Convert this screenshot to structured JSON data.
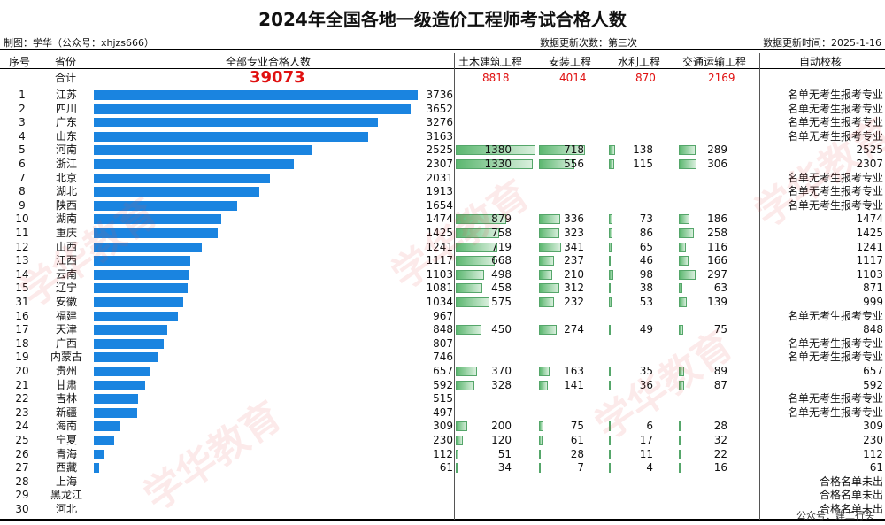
{
  "header": {
    "title": "2024年全国各地一级造价工程师考试合格人数",
    "maker": "制图：学华（公众号：xhjzs666）",
    "update_count": "数据更新次数：第三次",
    "update_time": "数据更新时间：2025-1-16"
  },
  "columns": {
    "no": "序号",
    "province": "省份",
    "all": "全部专业合格人数",
    "civil": "土木建筑工程",
    "install": "安装工程",
    "water": "水利工程",
    "traffic": "交通运输工程",
    "check": "自动校核"
  },
  "totals": {
    "label": "合计",
    "all": "39073",
    "civil": "8818",
    "install": "4014",
    "water": "870",
    "traffic": "2169"
  },
  "watermark": "学华教育",
  "footer_note": "公众号：建工行头",
  "colors": {
    "bar": "#1a84e0",
    "green": "#5cb770",
    "total": "#e01010"
  },
  "chart_data": {
    "type": "bar",
    "title": "2024年全国各地一级造价工程师考试合格人数",
    "series": [
      {
        "name": "全部专业合格人数"
      },
      {
        "name": "土木建筑工程"
      },
      {
        "name": "安装工程"
      },
      {
        "name": "水利工程"
      },
      {
        "name": "交通运输工程"
      }
    ],
    "rows": [
      {
        "no": "1",
        "province": "江苏",
        "all": 3736,
        "civil": null,
        "install": null,
        "water": null,
        "traffic": null,
        "check": "名单无考生报考专业"
      },
      {
        "no": "2",
        "province": "四川",
        "all": 3652,
        "civil": null,
        "install": null,
        "water": null,
        "traffic": null,
        "check": "名单无考生报考专业"
      },
      {
        "no": "3",
        "province": "广东",
        "all": 3276,
        "civil": null,
        "install": null,
        "water": null,
        "traffic": null,
        "check": "名单无考生报考专业"
      },
      {
        "no": "4",
        "province": "山东",
        "all": 3163,
        "civil": null,
        "install": null,
        "water": null,
        "traffic": null,
        "check": "名单无考生报考专业"
      },
      {
        "no": "5",
        "province": "河南",
        "all": 2525,
        "civil": 1380,
        "install": 718,
        "water": 138,
        "traffic": 289,
        "check": "2525"
      },
      {
        "no": "6",
        "province": "浙江",
        "all": 2307,
        "civil": 1330,
        "install": 556,
        "water": 115,
        "traffic": 306,
        "check": "2307"
      },
      {
        "no": "7",
        "province": "北京",
        "all": 2031,
        "civil": null,
        "install": null,
        "water": null,
        "traffic": null,
        "check": "名单无考生报考专业"
      },
      {
        "no": "8",
        "province": "湖北",
        "all": 1913,
        "civil": null,
        "install": null,
        "water": null,
        "traffic": null,
        "check": "名单无考生报考专业"
      },
      {
        "no": "9",
        "province": "陕西",
        "all": 1654,
        "civil": null,
        "install": null,
        "water": null,
        "traffic": null,
        "check": "名单无考生报考专业"
      },
      {
        "no": "10",
        "province": "湖南",
        "all": 1474,
        "civil": 879,
        "install": 336,
        "water": 73,
        "traffic": 186,
        "check": "1474"
      },
      {
        "no": "11",
        "province": "重庆",
        "all": 1425,
        "civil": 758,
        "install": 323,
        "water": 86,
        "traffic": 258,
        "check": "1425"
      },
      {
        "no": "12",
        "province": "山西",
        "all": 1241,
        "civil": 719,
        "install": 341,
        "water": 65,
        "traffic": 116,
        "check": "1241"
      },
      {
        "no": "13",
        "province": "江西",
        "all": 1117,
        "civil": 668,
        "install": 237,
        "water": 46,
        "traffic": 166,
        "check": "1117"
      },
      {
        "no": "14",
        "province": "云南",
        "all": 1103,
        "civil": 498,
        "install": 210,
        "water": 98,
        "traffic": 297,
        "check": "1103"
      },
      {
        "no": "15",
        "province": "辽宁",
        "all": 1081,
        "civil": 458,
        "install": 312,
        "water": 38,
        "traffic": 63,
        "check": "871"
      },
      {
        "no": "31",
        "province": "安徽",
        "all": 1034,
        "civil": 575,
        "install": 232,
        "water": 53,
        "traffic": 139,
        "check": "999"
      },
      {
        "no": "16",
        "province": "福建",
        "all": 967,
        "civil": null,
        "install": null,
        "water": null,
        "traffic": null,
        "check": "名单无考生报考专业"
      },
      {
        "no": "17",
        "province": "天津",
        "all": 848,
        "civil": 450,
        "install": 274,
        "water": 49,
        "traffic": 75,
        "check": "848"
      },
      {
        "no": "18",
        "province": "广西",
        "all": 807,
        "civil": null,
        "install": null,
        "water": null,
        "traffic": null,
        "check": "名单无考生报考专业"
      },
      {
        "no": "19",
        "province": "内蒙古",
        "all": 746,
        "civil": null,
        "install": null,
        "water": null,
        "traffic": null,
        "check": "名单无考生报考专业"
      },
      {
        "no": "20",
        "province": "贵州",
        "all": 657,
        "civil": 370,
        "install": 163,
        "water": 35,
        "traffic": 89,
        "check": "657"
      },
      {
        "no": "21",
        "province": "甘肃",
        "all": 592,
        "civil": 328,
        "install": 141,
        "water": 36,
        "traffic": 87,
        "check": "592"
      },
      {
        "no": "22",
        "province": "吉林",
        "all": 515,
        "civil": null,
        "install": null,
        "water": null,
        "traffic": null,
        "check": "名单无考生报考专业"
      },
      {
        "no": "23",
        "province": "新疆",
        "all": 497,
        "civil": null,
        "install": null,
        "water": null,
        "traffic": null,
        "check": "名单无考生报考专业"
      },
      {
        "no": "24",
        "province": "海南",
        "all": 309,
        "civil": 200,
        "install": 75,
        "water": 6,
        "traffic": 28,
        "check": "309"
      },
      {
        "no": "25",
        "province": "宁夏",
        "all": 230,
        "civil": 120,
        "install": 61,
        "water": 17,
        "traffic": 32,
        "check": "230"
      },
      {
        "no": "26",
        "province": "青海",
        "all": 112,
        "civil": 51,
        "install": 28,
        "water": 11,
        "traffic": 22,
        "check": "112"
      },
      {
        "no": "27",
        "province": "西藏",
        "all": 61,
        "civil": 34,
        "install": 7,
        "water": 4,
        "traffic": 16,
        "check": "61"
      },
      {
        "no": "28",
        "province": "上海",
        "all": null,
        "civil": null,
        "install": null,
        "water": null,
        "traffic": null,
        "check": "合格名单未出"
      },
      {
        "no": "29",
        "province": "黑龙江",
        "all": null,
        "civil": null,
        "install": null,
        "water": null,
        "traffic": null,
        "check": "合格名单未出"
      },
      {
        "no": "30",
        "province": "河北",
        "all": null,
        "civil": null,
        "install": null,
        "water": null,
        "traffic": null,
        "check": "合格名单未出"
      }
    ]
  }
}
